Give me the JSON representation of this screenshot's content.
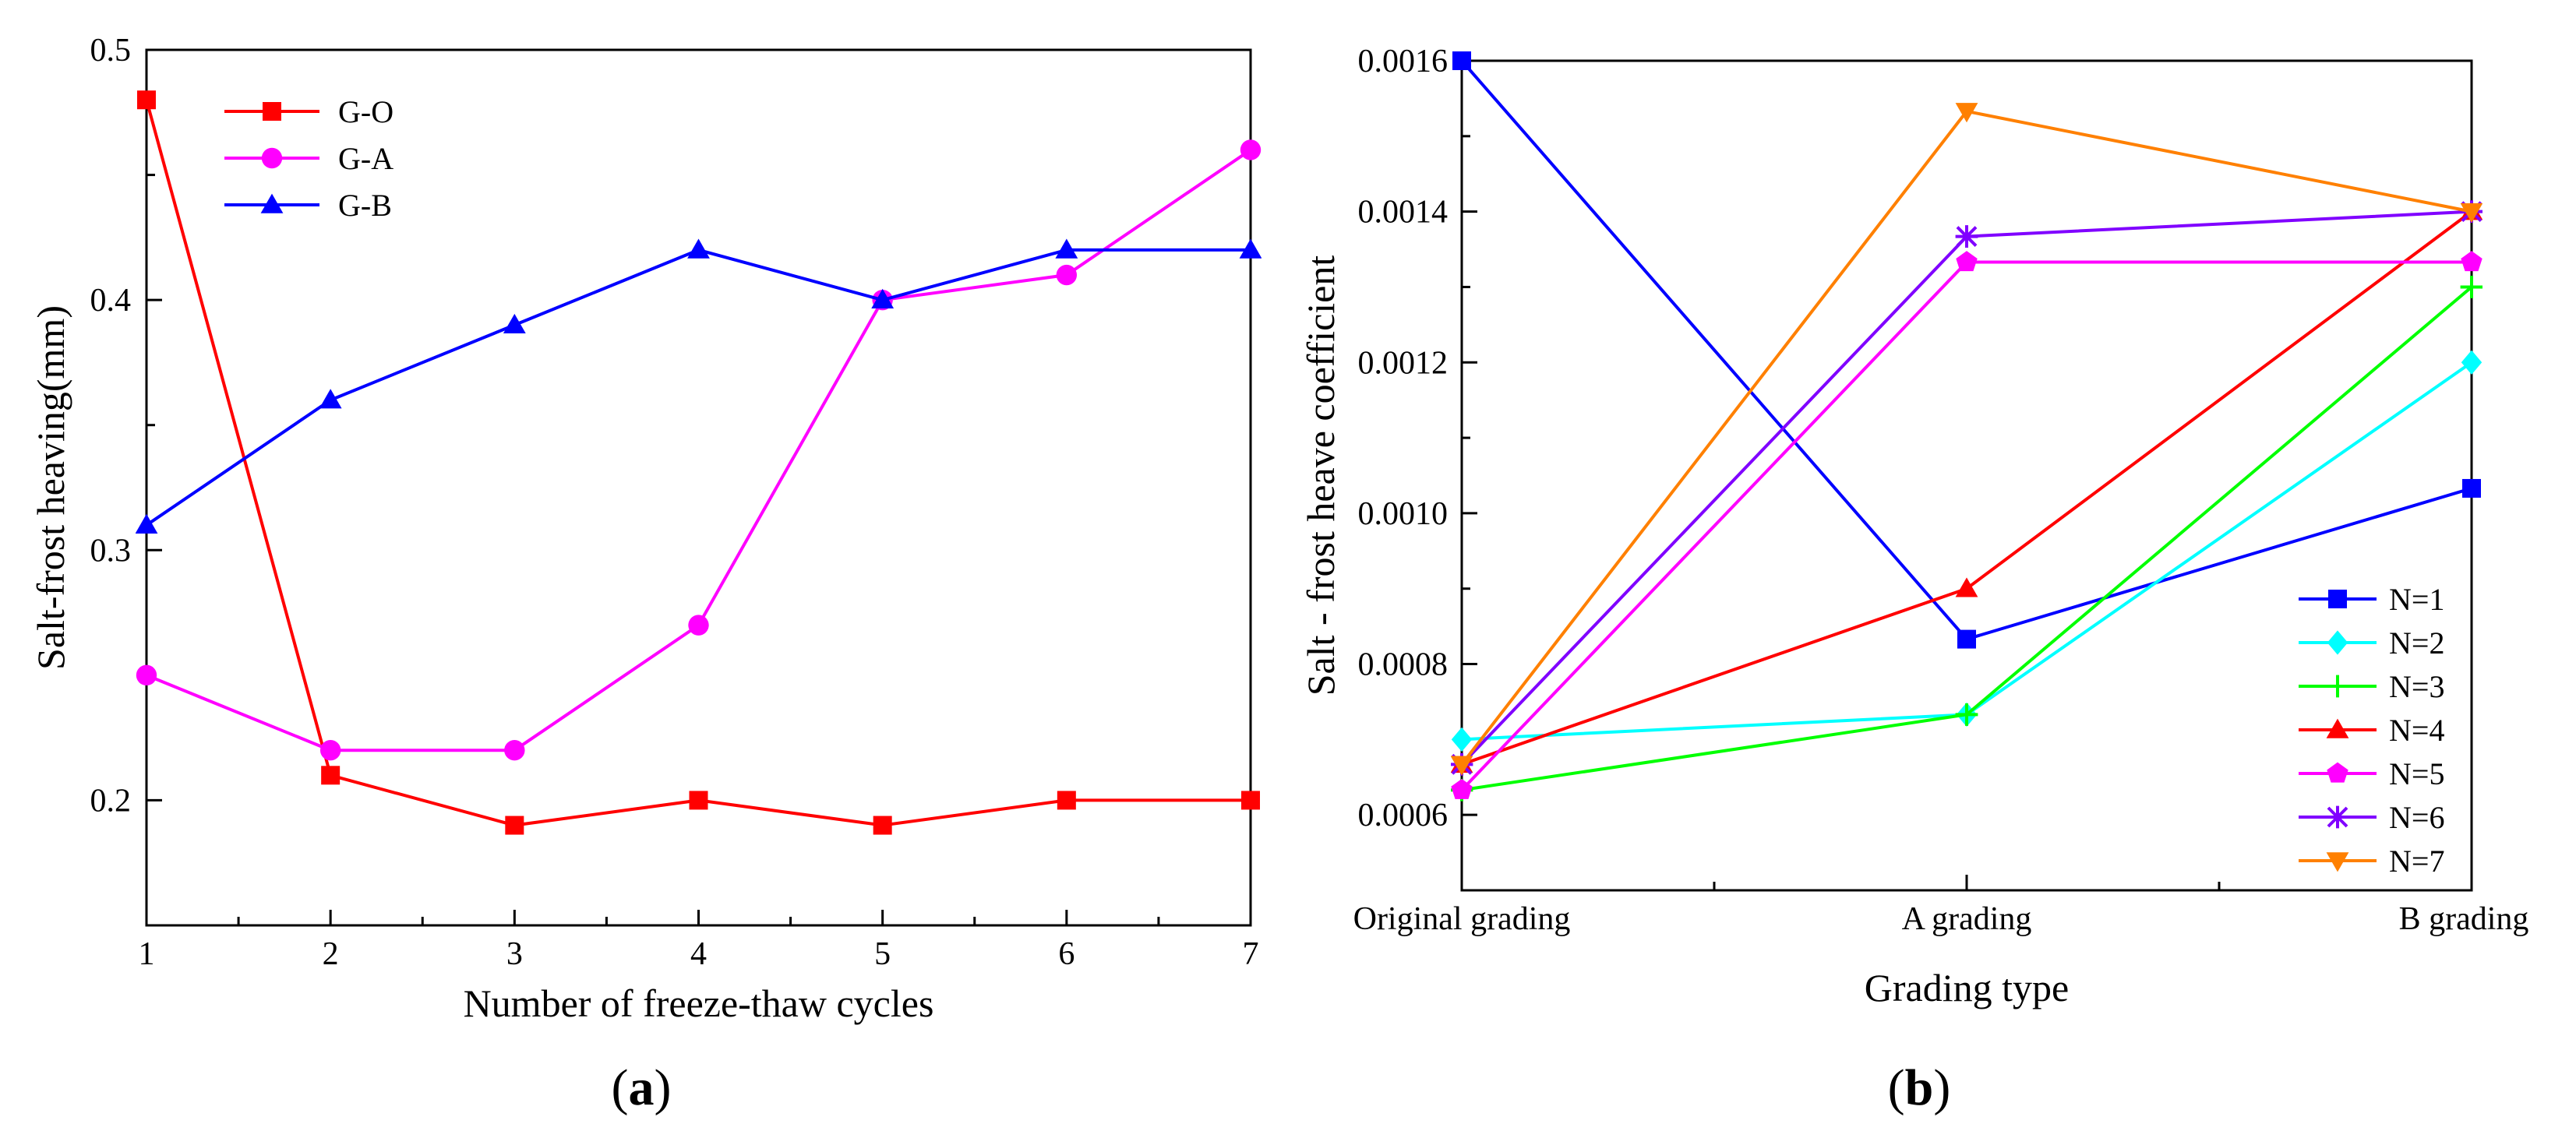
{
  "chart_data": [
    {
      "type": "line",
      "panel_label": "a",
      "xlabel": "Number of freeze-thaw cycles",
      "ylabel": "Salt-frost heaving(mm)",
      "x": [
        1,
        2,
        3,
        4,
        5,
        6,
        7
      ],
      "xlim": [
        1,
        7
      ],
      "ylim": [
        0.15,
        0.5
      ],
      "x_ticks": [
        "1",
        "2",
        "3",
        "4",
        "5",
        "6",
        "7"
      ],
      "y_ticks": [
        "0.2",
        "0.3",
        "0.4",
        "0.5"
      ],
      "legend_position": "top-left",
      "series": [
        {
          "name": "G-O",
          "color": "#ff0000",
          "marker": "square",
          "values": [
            0.48,
            0.21,
            0.19,
            0.2,
            0.19,
            0.2,
            0.2
          ]
        },
        {
          "name": "G-A",
          "color": "#ff00ff",
          "marker": "circle",
          "values": [
            0.25,
            0.22,
            0.22,
            0.27,
            0.4,
            0.41,
            0.46
          ]
        },
        {
          "name": "G-B",
          "color": "#0000ff",
          "marker": "triangle-up",
          "values": [
            0.31,
            0.36,
            0.39,
            0.42,
            0.4,
            0.42,
            0.42
          ]
        }
      ]
    },
    {
      "type": "line",
      "panel_label": "b",
      "xlabel": "Grading type",
      "ylabel": "Salt - frost heave coefficient",
      "categories": [
        "Original grading",
        "A grading",
        "B grading"
      ],
      "ylim": [
        0.0005,
        0.0016
      ],
      "y_ticks": [
        "0.0006",
        "0.0008",
        "0.0010",
        "0.0012",
        "0.0014",
        "0.0016"
      ],
      "legend_position": "bottom-right",
      "series": [
        {
          "name": "N=1",
          "color": "#0000ff",
          "marker": "square",
          "values": [
            0.0016,
            0.000833,
            0.001033
          ]
        },
        {
          "name": "N=2",
          "color": "#00ffff",
          "marker": "diamond",
          "values": [
            0.0007,
            0.000733,
            0.0012
          ]
        },
        {
          "name": "N=3",
          "color": "#00ff00",
          "marker": "plus",
          "values": [
            0.000633,
            0.000733,
            0.0013
          ]
        },
        {
          "name": "N=4",
          "color": "#ff0000",
          "marker": "triangle-up",
          "values": [
            0.000667,
            0.0009,
            0.0014
          ]
        },
        {
          "name": "N=5",
          "color": "#ff00ff",
          "marker": "pentagon",
          "values": [
            0.000633,
            0.001333,
            0.001333
          ]
        },
        {
          "name": "N=6",
          "color": "#8000ff",
          "marker": "star",
          "values": [
            0.000667,
            0.001367,
            0.0014
          ]
        },
        {
          "name": "N=7",
          "color": "#ff8000",
          "marker": "triangle-down",
          "values": [
            0.000667,
            0.001533,
            0.0014
          ]
        }
      ]
    }
  ]
}
